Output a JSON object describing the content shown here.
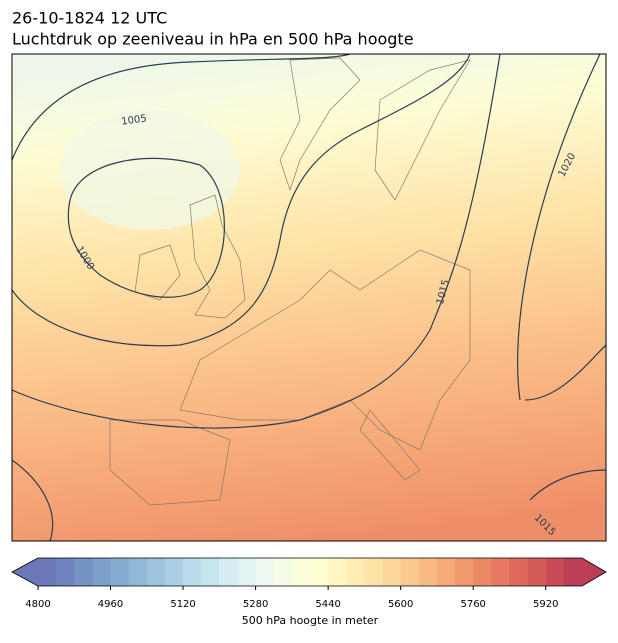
{
  "title": {
    "line1": "26-10-1824 12 UTC",
    "line2": "Luchtdruk op zeeniveau in hPa en 500 hPa hoogte"
  },
  "map": {
    "contour_labels": [
      1005,
      1000,
      1015,
      1020,
      1015
    ]
  },
  "colorbar": {
    "label": "500 hPa hoogte in meter",
    "lim": [
      4800,
      6000
    ],
    "ticks": [
      4800,
      4960,
      5120,
      5280,
      5440,
      5600,
      5760,
      5920
    ],
    "colors": [
      "#6a77b8",
      "#6f84be",
      "#7592c4",
      "#7d9fcb",
      "#86acd1",
      "#91b9d7",
      "#9ec5dd",
      "#abd0e4",
      "#b9dbea",
      "#c7e5ef",
      "#d5edf3",
      "#e2f3f4",
      "#eef8f1",
      "#f5fbe6",
      "#fbfddb",
      "#fffdd2",
      "#fff6c4",
      "#ffedb5",
      "#fee3a6",
      "#fdd699",
      "#fbc98d",
      "#f9ba81",
      "#f6aa77",
      "#f29a6e",
      "#ed8a66",
      "#e67960",
      "#de695b",
      "#d45a58",
      "#c84b57",
      "#bb3e56"
    ]
  }
}
